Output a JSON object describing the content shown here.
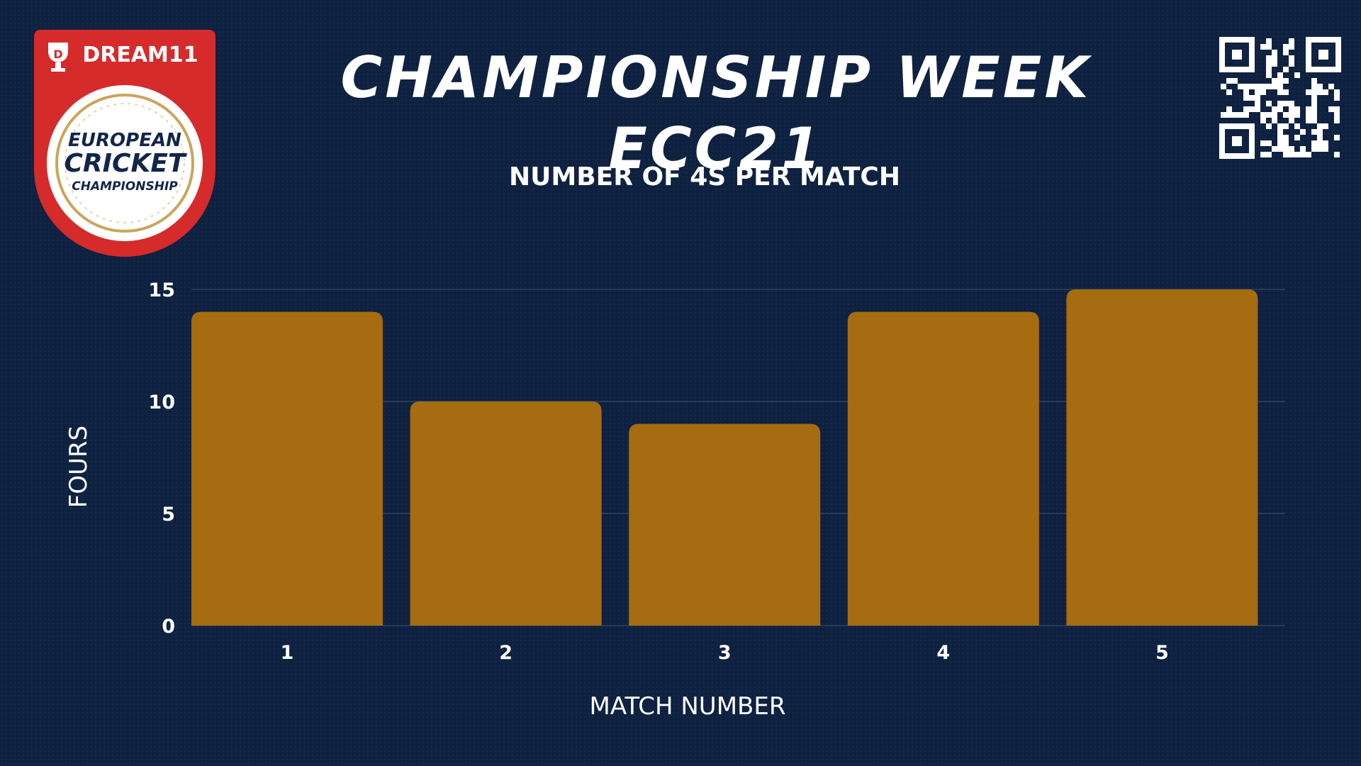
{
  "header": {
    "title": "CHAMPIONSHIP WEEK ECC21",
    "logo": {
      "brand": "DREAM11",
      "line1": "EUROPEAN",
      "line2": "CRICKET",
      "line3": "CHAMPIONSHIP"
    },
    "qr_icon": "qr-code-icon"
  },
  "colors": {
    "background": "#0e2140",
    "bar": "#a56c11",
    "logo_red": "#d52b2b",
    "text": "#ffffff"
  },
  "chart_data": {
    "type": "bar",
    "title": "NUMBER OF 4S PER MATCH",
    "xlabel": "MATCH NUMBER",
    "ylabel": "FOURS",
    "categories": [
      "1",
      "2",
      "3",
      "4",
      "5"
    ],
    "values": [
      14,
      10,
      9,
      14,
      15
    ],
    "ylim": [
      0,
      15
    ],
    "yticks": [
      "0",
      "5",
      "10",
      "15"
    ],
    "grid": true,
    "legend": "none"
  }
}
